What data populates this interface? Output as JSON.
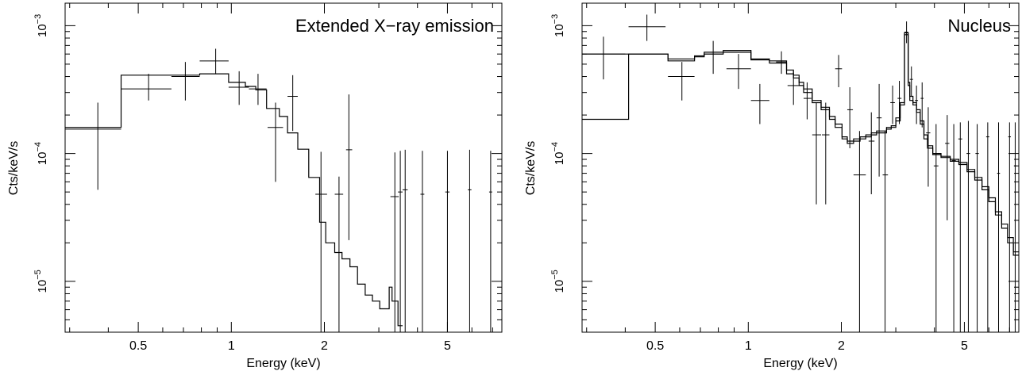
{
  "chart_data": [
    {
      "type": "scatter",
      "title": "Extended X−ray emission",
      "xlabel": "Energy (keV)",
      "ylabel": "Cts/keV/s",
      "xscale": "log",
      "yscale": "log",
      "xlim": [
        0.29,
        7.5
      ],
      "ylim": [
        4e-06,
        0.0015
      ],
      "xticks": [
        {
          "v": 0.5,
          "label": "0.5"
        },
        {
          "v": 1,
          "label": "1"
        },
        {
          "v": 2,
          "label": "2"
        },
        {
          "v": 5,
          "label": "5"
        }
      ],
      "yticks": [
        {
          "v": 1e-05,
          "exp": "−5",
          "base": "10"
        },
        {
          "v": 0.0001,
          "exp": "−4",
          "base": "10"
        },
        {
          "v": 0.001,
          "exp": "−3",
          "base": "10"
        }
      ],
      "grid": false,
      "series": [
        {
          "kind": "data",
          "points": [
            {
              "x": 0.37,
              "xlo": 0.29,
              "xhi": 0.44,
              "y": 0.000155,
              "ylo": 5.2e-05,
              "yhi": 0.00025
            },
            {
              "x": 0.54,
              "xlo": 0.44,
              "xhi": 0.64,
              "y": 0.00032,
              "ylo": 0.00026,
              "yhi": 0.00042
            },
            {
              "x": 0.71,
              "xlo": 0.64,
              "xhi": 0.79,
              "y": 0.0004,
              "ylo": 0.00026,
              "yhi": 0.00052
            },
            {
              "x": 0.89,
              "xlo": 0.79,
              "xhi": 0.98,
              "y": 0.00053,
              "ylo": 0.00042,
              "yhi": 0.00066
            },
            {
              "x": 1.06,
              "xlo": 0.98,
              "xhi": 1.14,
              "y": 0.00033,
              "ylo": 0.00024,
              "yhi": 0.00044
            },
            {
              "x": 1.22,
              "xlo": 1.14,
              "xhi": 1.3,
              "y": 0.00032,
              "ylo": 0.00024,
              "yhi": 0.00042
            },
            {
              "x": 1.39,
              "xlo": 1.31,
              "xhi": 1.47,
              "y": 0.00016,
              "ylo": 6e-05,
              "yhi": 0.00025
            },
            {
              "x": 1.58,
              "xlo": 1.52,
              "xhi": 1.64,
              "y": 0.00028,
              "ylo": 0.00015,
              "yhi": 0.00041
            },
            {
              "x": 1.95,
              "xlo": 1.87,
              "xhi": 2.04,
              "y": 4.8e-05,
              "ylo": 4e-06,
              "yhi": 0.000103
            },
            {
              "x": 2.23,
              "xlo": 2.16,
              "xhi": 2.3,
              "y": 4.8e-05,
              "ylo": 4e-06,
              "yhi": 6.6e-05
            },
            {
              "x": 2.4,
              "xlo": 2.35,
              "xhi": 2.46,
              "y": 0.000107,
              "ylo": 2.1e-05,
              "yhi": 0.00029
            },
            {
              "x": 3.38,
              "xlo": 3.27,
              "xhi": 3.48,
              "y": 4.6e-05,
              "ylo": 4e-06,
              "yhi": 0.000102
            },
            {
              "x": 3.52,
              "xlo": 3.46,
              "xhi": 3.58,
              "y": 5e-05,
              "ylo": 4e-06,
              "yhi": 0.000105
            },
            {
              "x": 3.65,
              "xlo": 3.58,
              "xhi": 3.72,
              "y": 5.2e-05,
              "ylo": 4e-06,
              "yhi": 0.000107
            },
            {
              "x": 4.15,
              "xlo": 4.09,
              "xhi": 4.21,
              "y": 4.8e-05,
              "ylo": 4e-06,
              "yhi": 0.000105
            },
            {
              "x": 5.0,
              "xlo": 4.92,
              "xhi": 5.08,
              "y": 5e-05,
              "ylo": 4e-06,
              "yhi": 0.000105
            },
            {
              "x": 5.9,
              "xlo": 5.82,
              "xhi": 5.98,
              "y": 5.2e-05,
              "ylo": 4e-06,
              "yhi": 0.000107
            },
            {
              "x": 6.9,
              "xlo": 6.82,
              "xhi": 6.98,
              "y": 5e-05,
              "ylo": 4e-06,
              "yhi": 0.000105
            }
          ]
        },
        {
          "kind": "model",
          "edges": [
            0.29,
            0.44,
            0.64,
            0.79,
            0.98,
            1.11,
            1.2,
            1.3,
            1.43,
            1.52,
            1.64,
            1.78,
            1.93,
            2.02,
            2.16,
            2.28,
            2.42,
            2.56,
            2.71,
            2.86,
            3.02,
            3.24,
            3.31,
            3.46,
            3.58
          ],
          "values": [
            0.00016,
            0.00041,
            0.00041,
            0.00042,
            0.00036,
            0.000335,
            0.000315,
            0.000225,
            0.000195,
            0.000145,
            0.000108,
            6.5e-05,
            2.9e-05,
            2e-05,
            1.68e-05,
            1.5e-05,
            1.3e-05,
            9.5e-06,
            7.8e-06,
            7e-06,
            6.1e-06,
            9e-06,
            7e-06,
            4.5e-06
          ]
        }
      ]
    },
    {
      "type": "scatter",
      "title": "Nucleus",
      "xlabel": "Energy (keV)",
      "ylabel": "Cts/keV/s",
      "xscale": "log",
      "yscale": "log",
      "xlim": [
        0.29,
        7.5
      ],
      "ylim": [
        4e-06,
        0.0015
      ],
      "xticks": [
        {
          "v": 0.5,
          "label": "0.5"
        },
        {
          "v": 1,
          "label": "1"
        },
        {
          "v": 2,
          "label": "2"
        },
        {
          "v": 5,
          "label": "5"
        }
      ],
      "yticks": [
        {
          "v": 1e-05,
          "exp": "−5",
          "base": "10"
        },
        {
          "v": 0.0001,
          "exp": "−4",
          "base": "10"
        },
        {
          "v": 0.001,
          "exp": "−3",
          "base": "10"
        }
      ],
      "grid": false,
      "series": [
        {
          "kind": "data",
          "points": [
            {
              "x": 0.34,
              "xlo": 0.29,
              "xhi": 0.4,
              "y": 0.0006,
              "ylo": 0.00038,
              "yhi": 0.00082
            },
            {
              "x": 0.47,
              "xlo": 0.41,
              "xhi": 0.54,
              "y": 0.00098,
              "ylo": 0.00076,
              "yhi": 0.00122
            },
            {
              "x": 0.61,
              "xlo": 0.55,
              "xhi": 0.67,
              "y": 0.0004,
              "ylo": 0.00026,
              "yhi": 0.00052
            },
            {
              "x": 0.77,
              "xlo": 0.72,
              "xhi": 0.83,
              "y": 0.0006,
              "ylo": 0.00042,
              "yhi": 0.00076
            },
            {
              "x": 0.93,
              "xlo": 0.85,
              "xhi": 1.02,
              "y": 0.00046,
              "ylo": 0.00032,
              "yhi": 0.0006
            },
            {
              "x": 1.09,
              "xlo": 1.02,
              "xhi": 1.17,
              "y": 0.00026,
              "ylo": 0.00017,
              "yhi": 0.00035
            },
            {
              "x": 1.28,
              "xlo": 1.23,
              "xhi": 1.33,
              "y": 0.00052,
              "ylo": 0.00042,
              "yhi": 0.00063
            },
            {
              "x": 1.4,
              "xlo": 1.34,
              "xhi": 1.46,
              "y": 0.00034,
              "ylo": 0.00024,
              "yhi": 0.00044
            },
            {
              "x": 1.55,
              "xlo": 1.51,
              "xhi": 1.6,
              "y": 0.00027,
              "ylo": 0.000185,
              "yhi": 0.00036
            },
            {
              "x": 1.66,
              "xlo": 1.61,
              "xhi": 1.72,
              "y": 0.00014,
              "ylo": 4e-05,
              "yhi": 0.00025
            },
            {
              "x": 1.78,
              "xlo": 1.73,
              "xhi": 1.83,
              "y": 0.00014,
              "ylo": 4e-05,
              "yhi": 0.00025
            },
            {
              "x": 1.96,
              "xlo": 1.91,
              "xhi": 2.01,
              "y": 0.00046,
              "ylo": 0.00033,
              "yhi": 0.00059
            },
            {
              "x": 2.13,
              "xlo": 2.09,
              "xhi": 2.18,
              "y": 0.00022,
              "ylo": 0.00011,
              "yhi": 0.00033
            },
            {
              "x": 2.29,
              "xlo": 2.19,
              "xhi": 2.4,
              "y": 6.8e-05,
              "ylo": 4e-06,
              "yhi": 0.00015
            },
            {
              "x": 2.5,
              "xlo": 2.45,
              "xhi": 2.56,
              "y": 0.000125,
              "ylo": 4.8e-05,
              "yhi": 0.00021
            },
            {
              "x": 2.65,
              "xlo": 2.6,
              "xhi": 2.7,
              "y": 0.00019,
              "ylo": 6.6e-05,
              "yhi": 0.00035
            },
            {
              "x": 2.77,
              "xlo": 2.72,
              "xhi": 2.83,
              "y": 6.8e-05,
              "ylo": 4e-06,
              "yhi": 0.00015
            },
            {
              "x": 2.93,
              "xlo": 2.88,
              "xhi": 2.98,
              "y": 0.00025,
              "ylo": 0.00017,
              "yhi": 0.00034
            },
            {
              "x": 3.08,
              "xlo": 3.04,
              "xhi": 3.13,
              "y": 0.00027,
              "ylo": 0.00017,
              "yhi": 0.00037
            },
            {
              "x": 3.25,
              "xlo": 3.2,
              "xhi": 3.29,
              "y": 0.00089,
              "ylo": 0.00073,
              "yhi": 0.00108
            },
            {
              "x": 3.37,
              "xlo": 3.33,
              "xhi": 3.41,
              "y": 0.00038,
              "ylo": 0.00028,
              "yhi": 0.00048
            },
            {
              "x": 3.5,
              "xlo": 3.46,
              "xhi": 3.54,
              "y": 0.00026,
              "ylo": 0.00017,
              "yhi": 0.00034
            },
            {
              "x": 3.65,
              "xlo": 3.61,
              "xhi": 3.69,
              "y": 0.00027,
              "ylo": 0.00016,
              "yhi": 0.00036
            },
            {
              "x": 3.82,
              "xlo": 3.76,
              "xhi": 3.88,
              "y": 0.000145,
              "ylo": 5.5e-05,
              "yhi": 0.00023
            },
            {
              "x": 4.05,
              "xlo": 3.98,
              "xhi": 4.12,
              "y": 8e-05,
              "ylo": 4e-06,
              "yhi": 0.00017
            },
            {
              "x": 4.4,
              "xlo": 4.33,
              "xhi": 4.47,
              "y": 0.00012,
              "ylo": 3e-05,
              "yhi": 0.0002
            },
            {
              "x": 4.62,
              "xlo": 4.55,
              "xhi": 4.69,
              "y": 8.8e-05,
              "ylo": 4e-06,
              "yhi": 0.00017
            },
            {
              "x": 4.85,
              "xlo": 4.78,
              "xhi": 4.92,
              "y": 0.00013,
              "ylo": 4e-06,
              "yhi": 0.000175
            },
            {
              "x": 5.15,
              "xlo": 5.08,
              "xhi": 5.22,
              "y": 0.0001,
              "ylo": 4e-06,
              "yhi": 0.00018
            },
            {
              "x": 5.5,
              "xlo": 5.43,
              "xhi": 5.57,
              "y": 0.0001,
              "ylo": 4e-06,
              "yhi": 0.00017
            },
            {
              "x": 5.95,
              "xlo": 5.88,
              "xhi": 6.02,
              "y": 0.000135,
              "ylo": 4e-06,
              "yhi": 0.000175
            },
            {
              "x": 6.45,
              "xlo": 6.38,
              "xhi": 6.52,
              "y": 7e-05,
              "ylo": 4e-06,
              "yhi": 0.000175
            },
            {
              "x": 7.0,
              "xlo": 6.93,
              "xhi": 7.07,
              "y": 0.000135,
              "ylo": 4e-06,
              "yhi": 0.000175
            },
            {
              "x": 7.3,
              "xlo": 7.23,
              "xhi": 7.37,
              "y": 8e-05,
              "ylo": 4e-06,
              "yhi": 0.000175
            }
          ]
        },
        {
          "kind": "model",
          "edges": [
            0.29,
            0.41,
            0.55,
            0.67,
            0.72,
            0.83,
            1.02,
            1.17,
            1.33,
            1.4,
            1.46,
            1.51,
            1.61,
            1.72,
            1.83,
            1.91,
            2.01,
            2.09,
            2.19,
            2.3,
            2.4,
            2.5,
            2.6,
            2.7,
            2.8,
            2.9,
            3.0,
            3.1,
            3.2,
            3.29,
            3.33,
            3.41,
            3.5,
            3.6,
            3.7,
            3.8,
            3.95,
            4.2,
            4.5,
            4.8,
            5.1,
            5.4,
            5.7,
            6.0,
            6.3,
            6.6,
            6.9,
            7.2,
            7.5
          ],
          "values": [
            0.0006,
            0.0006,
            0.00055,
            0.00057,
            0.00062,
            0.00064,
            0.00054,
            0.00051,
            0.00042,
            0.00039,
            0.00036,
            0.00032,
            0.00025,
            0.00023,
            0.000195,
            0.00017,
            0.000135,
            0.000125,
            0.00013,
            0.000135,
            0.00014,
            0.000145,
            0.00015,
            0.00015,
            0.00016,
            0.000165,
            0.00019,
            0.00025,
            0.00088,
            0.00036,
            0.00028,
            0.00025,
            0.00022,
            0.00018,
            0.00014,
            0.000115,
            0.0001,
            9.5e-05,
            9e-05,
            8.5e-05,
            7.5e-05,
            6.5e-05,
            5.5e-05,
            4.5e-05,
            3.5e-05,
            2.8e-05,
            2.2e-05,
            1.7e-05
          ]
        },
        {
          "kind": "model",
          "edges": [
            0.29,
            0.41,
            0.55,
            0.67,
            0.72,
            0.83,
            1.02,
            1.17,
            1.33,
            1.4,
            1.46,
            1.51,
            1.61,
            1.72,
            1.83,
            1.91,
            2.01,
            2.09,
            2.19,
            2.3,
            2.4,
            2.5,
            2.6,
            2.7,
            2.8,
            2.9,
            3.0,
            3.1,
            3.2,
            3.29,
            3.33,
            3.41,
            3.5,
            3.6,
            3.7,
            3.8,
            3.95,
            4.2,
            4.5,
            4.8,
            5.1,
            5.4,
            5.7,
            6.0,
            6.3,
            6.6,
            6.9,
            7.2,
            7.5
          ],
          "values": [
            0.000185,
            0.0006,
            0.00053,
            0.00058,
            0.0006,
            0.00062,
            0.00055,
            0.00053,
            0.00045,
            0.00041,
            0.00034,
            0.0003,
            0.00026,
            0.00022,
            0.000185,
            0.00016,
            0.00013,
            0.00012,
            0.000125,
            0.00013,
            0.000135,
            0.00014,
            0.000145,
            0.000145,
            0.000155,
            0.00016,
            0.00018,
            0.00024,
            0.00085,
            0.00034,
            0.00026,
            0.00024,
            0.00021,
            0.00017,
            0.00013,
            0.00011,
            9.8e-05,
            9.3e-05,
            8.7e-05,
            8.2e-05,
            7.2e-05,
            6.2e-05,
            5.2e-05,
            4.2e-05,
            3.3e-05,
            2.6e-05,
            2e-05,
            1.6e-05
          ]
        }
      ]
    }
  ]
}
